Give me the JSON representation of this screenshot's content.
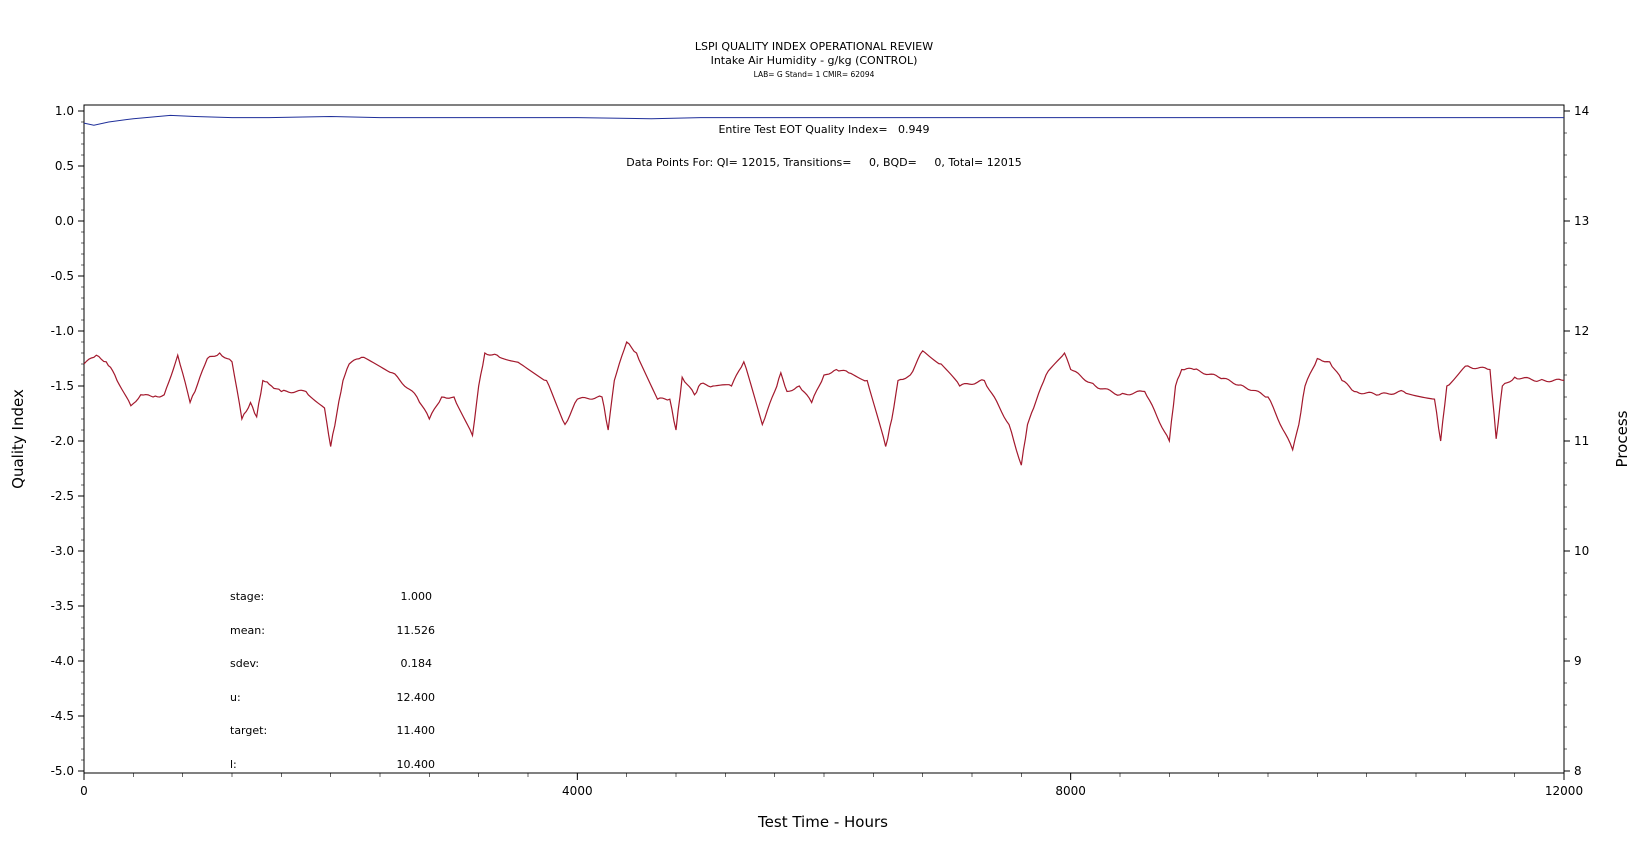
{
  "chart_data": {
    "type": "line",
    "title": "LSPI QUALITY INDEX OPERATIONAL REVIEW",
    "subtitle": "Intake Air Humidity - g/kg (CONTROL)",
    "subtitle2": "LAB= G Stand= 1 CMIR= 62094",
    "xlabel": "Test Time - Hours",
    "ylabel": "Quality Index",
    "y2label": "Process",
    "xlim": [
      0,
      12000
    ],
    "ylim": [
      -5.0,
      1.0
    ],
    "y2lim": [
      8,
      14
    ],
    "x_ticks": [
      "0",
      "4000",
      "8000",
      "12000"
    ],
    "y_ticks": [
      "1.0",
      "0.5",
      "0.0",
      "-0.5",
      "-1.0",
      "-1.5",
      "-2.0",
      "-2.5",
      "-3.0",
      "-3.5",
      "-4.0",
      "-4.5",
      "-5.0"
    ],
    "y2_ticks": [
      "14",
      "13",
      "12",
      "11",
      "10",
      "9",
      "8"
    ],
    "annotation_qi": "Entire Test EOT Quality Index=   0.949",
    "annotation_points": "Data Points For: QI= 12015, Transitions=     0, BQD=     0, Total= 12015",
    "series": [
      {
        "axis": "left",
        "color": "#1f2f9a",
        "x": [
          0,
          80,
          200,
          400,
          600,
          700,
          900,
          1200,
          1500,
          2000,
          2400,
          3000,
          4000,
          4600,
          5000,
          6000,
          8000,
          10000,
          12000
        ],
        "values": [
          0.89,
          0.87,
          0.9,
          0.93,
          0.95,
          0.96,
          0.95,
          0.94,
          0.94,
          0.95,
          0.94,
          0.94,
          0.94,
          0.93,
          0.94,
          0.94,
          0.94,
          0.94,
          0.94
        ]
      },
      {
        "axis": "right",
        "color": "#a3192d",
        "x": [
          0,
          100,
          180,
          250,
          380,
          460,
          560,
          650,
          760,
          860,
          900,
          1000,
          1100,
          1200,
          1280,
          1350,
          1400,
          1450,
          1520,
          1600,
          1800,
          1950,
          2000,
          2050,
          2100,
          2150,
          2250,
          2500,
          2700,
          2800,
          2900,
          3000,
          3150,
          3200,
          3250,
          3350,
          3500,
          3750,
          3900,
          4000,
          4200,
          4250,
          4300,
          4400,
          4480,
          4650,
          4750,
          4800,
          4850,
          4950,
          5000,
          5100,
          5250,
          5350,
          5500,
          5600,
          5650,
          5700,
          5800,
          5900,
          6000,
          6100,
          6200,
          6350,
          6500,
          6550,
          6600,
          6700,
          6800,
          6950,
          7100,
          7300,
          7500,
          7600,
          7650,
          7700,
          7800,
          7950,
          8000,
          8200,
          8400,
          8600,
          8800,
          8850,
          8900,
          9000,
          9200,
          9400,
          9600,
          9800,
          9850,
          9900,
          10000,
          10100,
          10200,
          10300,
          10500,
          10700,
          10950,
          11000,
          11050,
          11200,
          11400,
          11450,
          11500,
          11600,
          11800,
          12000
        ],
        "values": [
          11.7,
          11.78,
          11.72,
          11.6,
          11.32,
          11.42,
          11.4,
          11.42,
          11.78,
          11.35,
          11.45,
          11.75,
          11.8,
          11.72,
          11.2,
          11.35,
          11.22,
          11.55,
          11.5,
          11.45,
          11.45,
          11.3,
          10.95,
          11.25,
          11.55,
          11.7,
          11.76,
          11.62,
          11.4,
          11.2,
          11.4,
          11.4,
          11.05,
          11.5,
          11.8,
          11.78,
          11.72,
          11.55,
          11.15,
          11.38,
          11.4,
          11.1,
          11.55,
          11.9,
          11.8,
          11.38,
          11.38,
          11.1,
          11.58,
          11.42,
          11.52,
          11.5,
          11.5,
          11.72,
          11.15,
          11.45,
          11.62,
          11.45,
          11.5,
          11.35,
          11.6,
          11.65,
          11.62,
          11.55,
          10.95,
          11.2,
          11.55,
          11.6,
          11.82,
          11.7,
          11.5,
          11.55,
          11.15,
          10.78,
          11.15,
          11.3,
          11.6,
          11.8,
          11.65,
          11.5,
          11.42,
          11.45,
          11.0,
          11.5,
          11.65,
          11.65,
          11.58,
          11.5,
          11.4,
          10.92,
          11.15,
          11.5,
          11.75,
          11.72,
          11.55,
          11.45,
          11.42,
          11.45,
          11.38,
          11.0,
          11.5,
          11.68,
          11.65,
          11.02,
          11.5,
          11.58,
          11.55,
          11.55
        ]
      }
    ]
  },
  "stats": [
    {
      "label": "stage:",
      "value": "1.000"
    },
    {
      "label": "mean:",
      "value": "11.526"
    },
    {
      "label": "sdev:",
      "value": "0.184"
    },
    {
      "label": "u:",
      "value": "12.400"
    },
    {
      "label": "target:",
      "value": "11.400"
    },
    {
      "label": "l:",
      "value": "10.400"
    }
  ]
}
